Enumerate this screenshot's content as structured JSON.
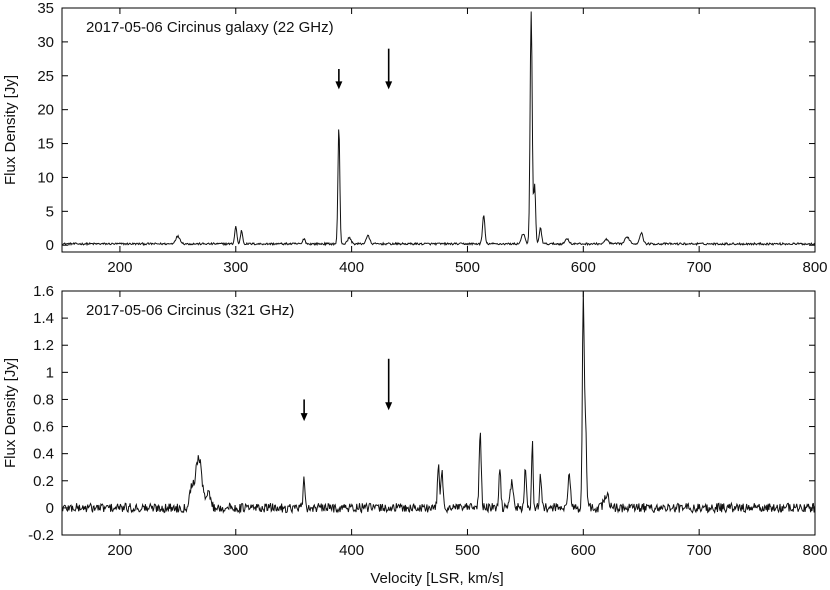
{
  "chart_data": [
    {
      "type": "line",
      "title": "2017-05-06  Circinus galaxy (22 GHz)",
      "ylabel": "Flux Density  [Jy]",
      "xlim": [
        150,
        800
      ],
      "ylim": [
        -1,
        35
      ],
      "xticks": [
        200,
        300,
        400,
        500,
        600,
        700,
        800
      ],
      "yticks": [
        0,
        5,
        10,
        15,
        20,
        25,
        30,
        35
      ],
      "baseline": 0.2,
      "noise": 0.15,
      "peaks": [
        {
          "x": 250,
          "y": 1.1,
          "w": 2.0
        },
        {
          "x": 300,
          "y": 2.6,
          "w": 0.9
        },
        {
          "x": 305,
          "y": 2.0,
          "w": 0.9
        },
        {
          "x": 359,
          "y": 0.8,
          "w": 1.0
        },
        {
          "x": 389,
          "y": 17.3,
          "w": 0.8
        },
        {
          "x": 398,
          "y": 0.9,
          "w": 1.5
        },
        {
          "x": 414,
          "y": 1.2,
          "w": 1.5
        },
        {
          "x": 514,
          "y": 4.2,
          "w": 1.0
        },
        {
          "x": 548,
          "y": 1.5,
          "w": 1.5
        },
        {
          "x": 555,
          "y": 34.2,
          "w": 0.9
        },
        {
          "x": 558,
          "y": 8.8,
          "w": 0.8
        },
        {
          "x": 563,
          "y": 2.4,
          "w": 1.0
        },
        {
          "x": 586,
          "y": 0.8,
          "w": 1.5
        },
        {
          "x": 620,
          "y": 0.7,
          "w": 1.5
        },
        {
          "x": 638,
          "y": 1.0,
          "w": 2.0
        },
        {
          "x": 650,
          "y": 1.6,
          "w": 1.5
        }
      ],
      "arrows": [
        {
          "x": 389,
          "y_top": 26,
          "y_bottom": 23
        },
        {
          "x": 432,
          "y_top": 29,
          "y_bottom": 23
        }
      ]
    },
    {
      "type": "line",
      "title": "2017-05-06  Circinus (321 GHz)",
      "xlabel": "Velocity [LSR, km/s]",
      "ylabel": "Flux Density  [Jy]",
      "xlim": [
        150,
        800
      ],
      "ylim": [
        -0.2,
        1.6
      ],
      "xticks": [
        200,
        300,
        400,
        500,
        600,
        700,
        800
      ],
      "yticks": [
        -0.2,
        0,
        0.2,
        0.4,
        0.6,
        0.8,
        1,
        1.2,
        1.4,
        1.6
      ],
      "baseline": 0.0,
      "noise": 0.035,
      "peaks": [
        {
          "x": 262,
          "y": 0.15,
          "w": 2.0
        },
        {
          "x": 268,
          "y": 0.38,
          "w": 2.5
        },
        {
          "x": 276,
          "y": 0.12,
          "w": 2.0
        },
        {
          "x": 359,
          "y": 0.22,
          "w": 0.7
        },
        {
          "x": 475,
          "y": 0.33,
          "w": 0.8
        },
        {
          "x": 478,
          "y": 0.3,
          "w": 0.8
        },
        {
          "x": 511,
          "y": 0.55,
          "w": 0.9
        },
        {
          "x": 528,
          "y": 0.28,
          "w": 0.8
        },
        {
          "x": 538,
          "y": 0.18,
          "w": 1.5
        },
        {
          "x": 550,
          "y": 0.28,
          "w": 0.8
        },
        {
          "x": 556,
          "y": 0.48,
          "w": 0.7
        },
        {
          "x": 563,
          "y": 0.26,
          "w": 0.8
        },
        {
          "x": 588,
          "y": 0.26,
          "w": 1.0
        },
        {
          "x": 600,
          "y": 1.55,
          "w": 0.8
        },
        {
          "x": 602,
          "y": 0.6,
          "w": 0.8
        },
        {
          "x": 620,
          "y": 0.1,
          "w": 2.0
        }
      ],
      "arrows": [
        {
          "x": 359,
          "y_top": 0.8,
          "y_bottom": 0.64
        },
        {
          "x": 432,
          "y_top": 1.1,
          "y_bottom": 0.72
        }
      ]
    }
  ]
}
